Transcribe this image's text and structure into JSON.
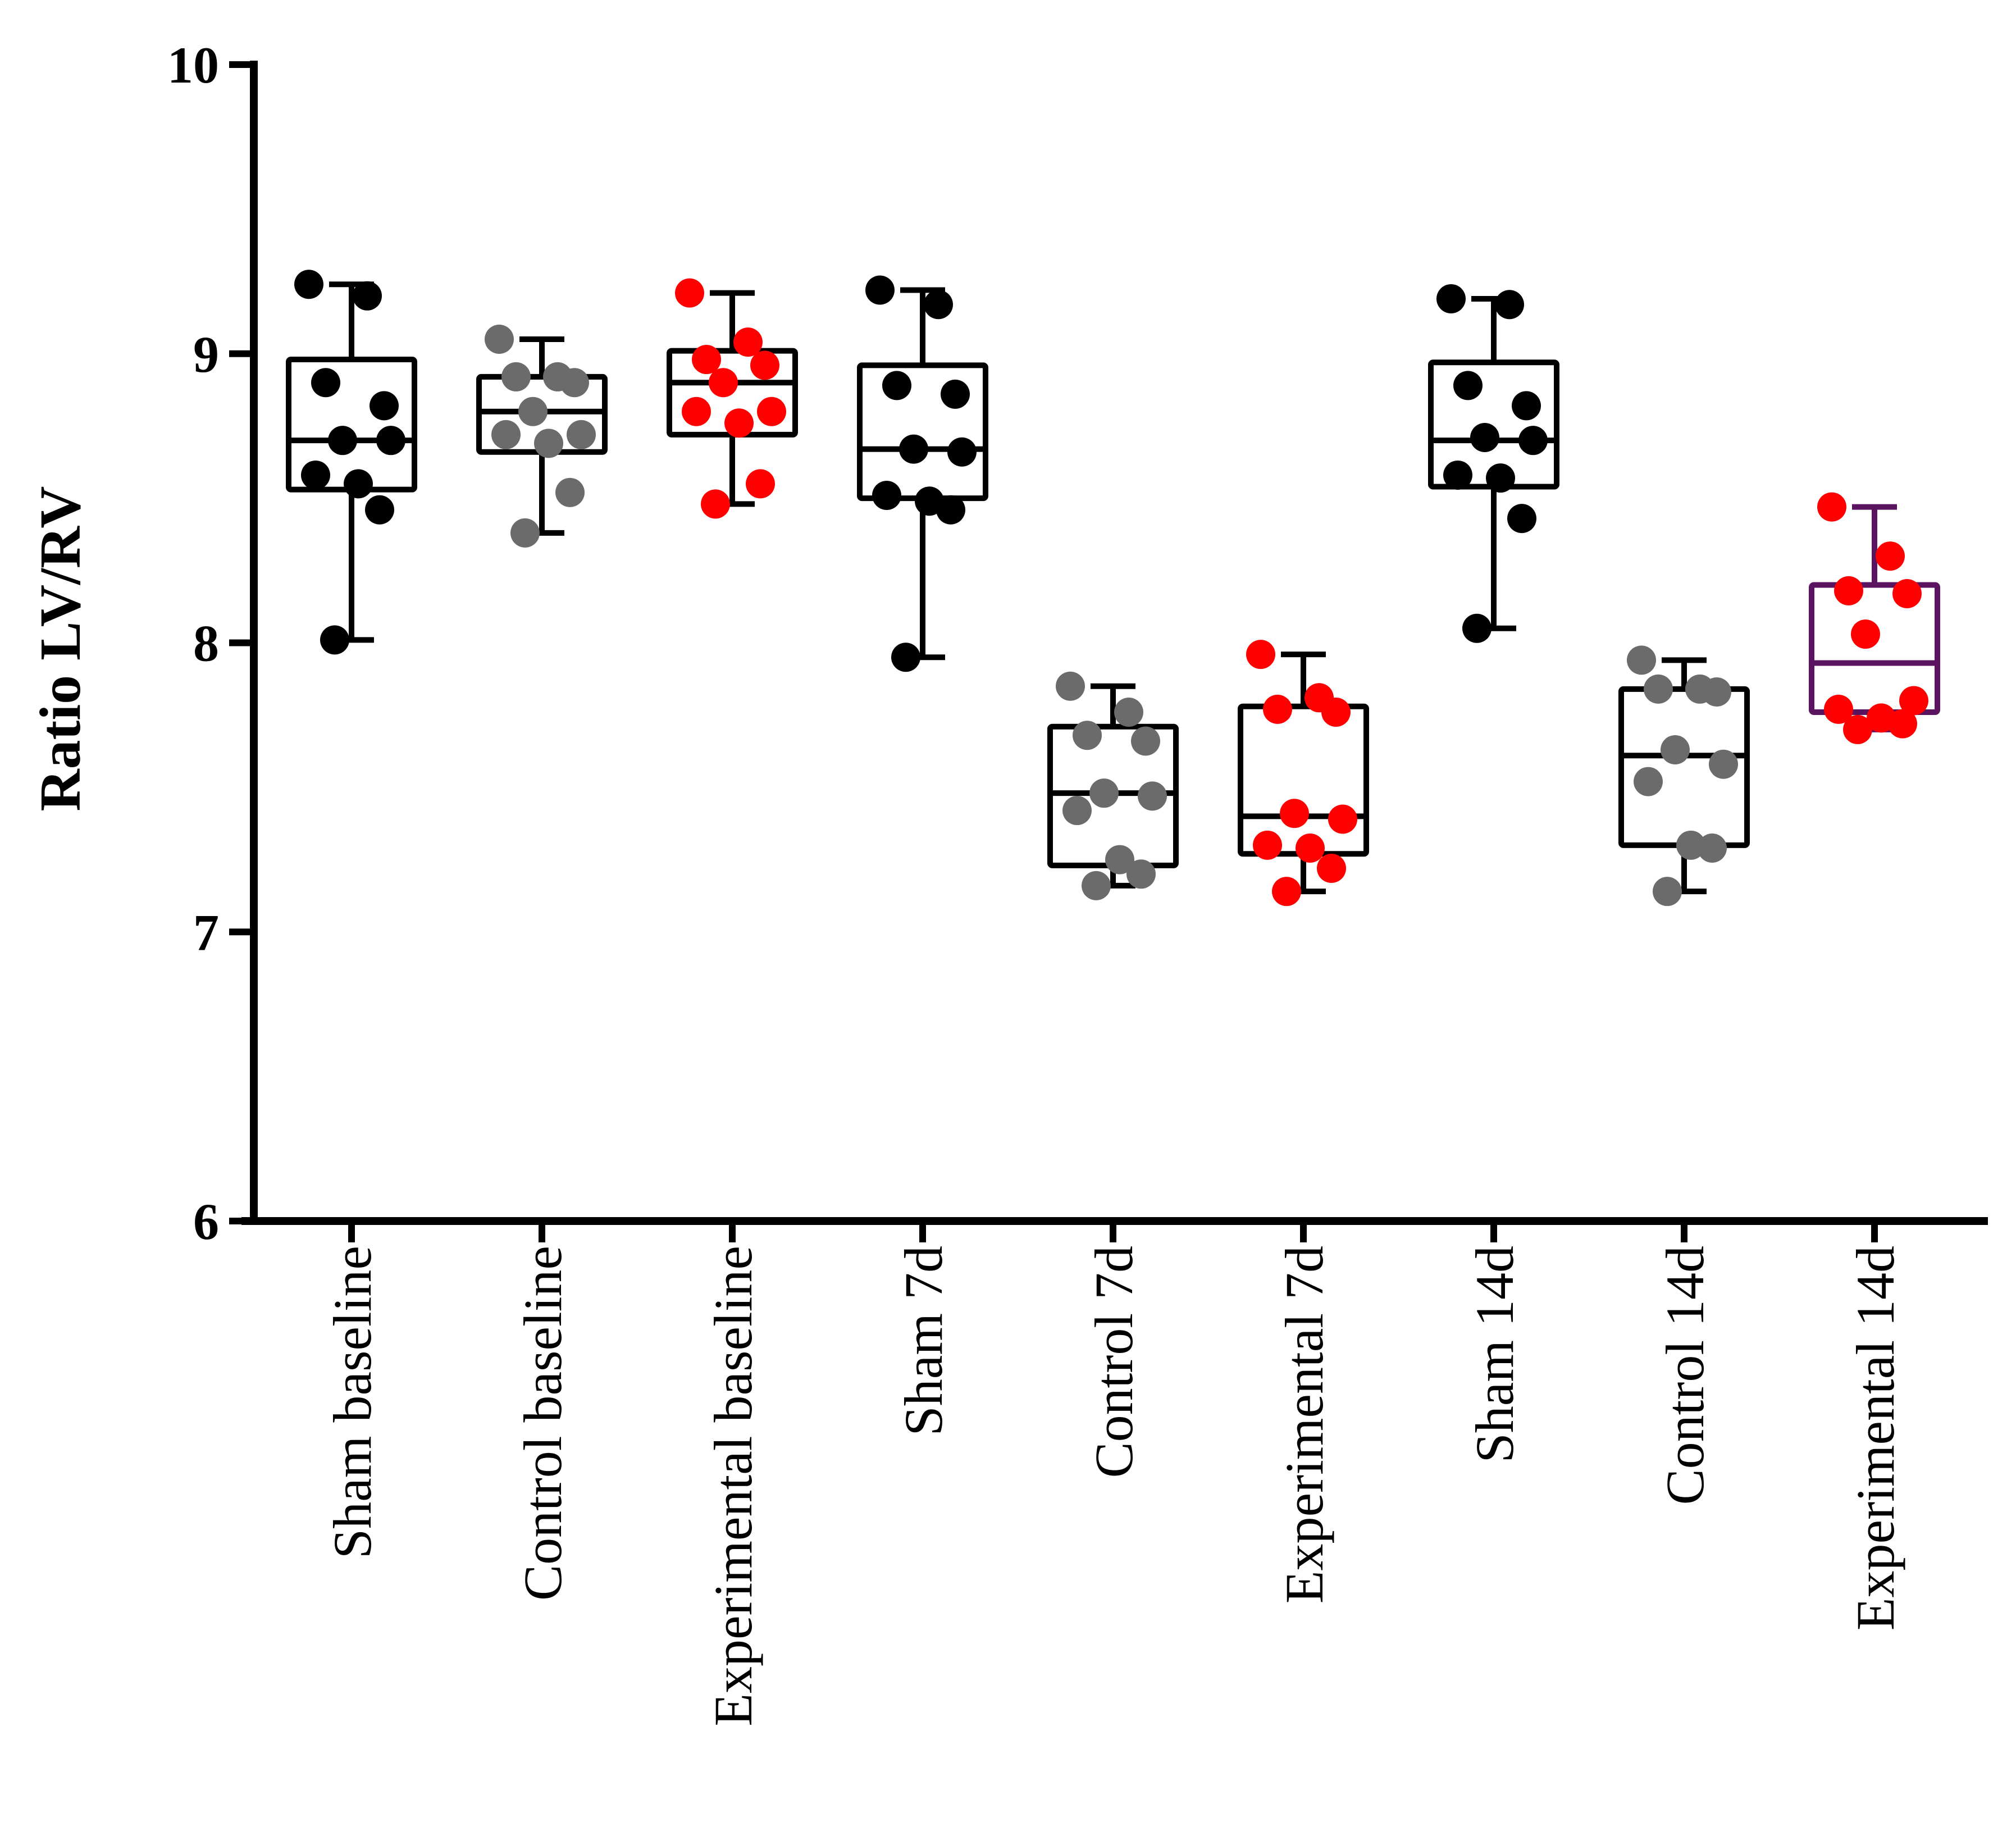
{
  "chart_data": {
    "type": "box",
    "title": "",
    "xlabel": "",
    "ylabel": "Ratio LV/RV",
    "ylim": [
      6,
      10
    ],
    "yticks": [
      6,
      7,
      8,
      9,
      10
    ],
    "categories": [
      "Sham baseline",
      "Control baseline",
      "Experimental baseline",
      "Sham 7d",
      "Control 7d",
      "Experimental 7d",
      "Sham 14d",
      "Control 14d",
      "Experimental 14d"
    ],
    "colors": {
      "sham": "#000000",
      "control": "#6b6b6b",
      "experimental": "#ff0000",
      "box_default": "#000000",
      "box_exp14": "#5b1460"
    },
    "groups": [
      {
        "name": "Sham baseline",
        "point_color": "#000000",
        "box_color": "#000000",
        "min": 8.01,
        "q1": 8.53,
        "median": 8.7,
        "q3": 8.98,
        "max": 9.24,
        "points": [
          9.24,
          9.2,
          8.9,
          8.82,
          8.7,
          8.7,
          8.58,
          8.55,
          8.46,
          8.01
        ]
      },
      {
        "name": "Control baseline",
        "point_color": "#6b6b6b",
        "box_color": "#000000",
        "min": 8.38,
        "q1": 8.66,
        "median": 8.8,
        "q3": 8.92,
        "max": 9.05,
        "points": [
          9.05,
          8.92,
          8.92,
          8.9,
          8.8,
          8.72,
          8.72,
          8.69,
          8.52,
          8.38
        ]
      },
      {
        "name": "Experimental baseline",
        "point_color": "#ff0000",
        "box_color": "#000000",
        "min": 8.48,
        "q1": 8.72,
        "median": 8.9,
        "q3": 9.01,
        "max": 9.21,
        "points": [
          9.21,
          9.04,
          8.98,
          8.96,
          8.9,
          8.8,
          8.8,
          8.76,
          8.55,
          8.48
        ]
      },
      {
        "name": "Sham 7d",
        "point_color": "#000000",
        "box_color": "#000000",
        "min": 7.95,
        "q1": 8.5,
        "median": 8.67,
        "q3": 8.96,
        "max": 9.22,
        "points": [
          9.22,
          9.17,
          8.89,
          8.86,
          8.67,
          8.66,
          8.51,
          8.49,
          8.46,
          7.95
        ]
      },
      {
        "name": "Control 7d",
        "point_color": "#6b6b6b",
        "box_color": "#000000",
        "min": 7.16,
        "q1": 7.23,
        "median": 7.48,
        "q3": 7.71,
        "max": 7.85,
        "points": [
          7.85,
          7.76,
          7.68,
          7.66,
          7.48,
          7.47,
          7.42,
          7.25,
          7.2,
          7.16
        ]
      },
      {
        "name": "Experimental 7d",
        "point_color": "#ff0000",
        "box_color": "#000000",
        "min": 7.14,
        "q1": 7.27,
        "median": 7.4,
        "q3": 7.78,
        "max": 7.96,
        "points": [
          7.96,
          7.81,
          7.77,
          7.76,
          7.41,
          7.39,
          7.3,
          7.29,
          7.22,
          7.14
        ]
      },
      {
        "name": "Sham 14d",
        "point_color": "#000000",
        "box_color": "#000000",
        "min": 8.05,
        "q1": 8.54,
        "median": 8.7,
        "q3": 8.97,
        "max": 9.19,
        "points": [
          9.19,
          9.17,
          8.89,
          8.82,
          8.71,
          8.7,
          8.58,
          8.57,
          8.43,
          8.05
        ]
      },
      {
        "name": "Control 14d",
        "point_color": "#6b6b6b",
        "box_color": "#000000",
        "min": 7.14,
        "q1": 7.3,
        "median": 7.61,
        "q3": 7.84,
        "max": 7.94,
        "points": [
          7.94,
          7.84,
          7.84,
          7.83,
          7.63,
          7.58,
          7.52,
          7.3,
          7.29,
          7.14
        ]
      },
      {
        "name": "Experimental 14d",
        "point_color": "#ff0000",
        "box_color": "#5b1460",
        "min": 7.7,
        "q1": 7.76,
        "median": 7.93,
        "q3": 8.2,
        "max": 8.47,
        "points": [
          8.47,
          8.3,
          8.18,
          8.17,
          8.03,
          7.8,
          7.77,
          7.74,
          7.72,
          7.7
        ]
      }
    ]
  }
}
